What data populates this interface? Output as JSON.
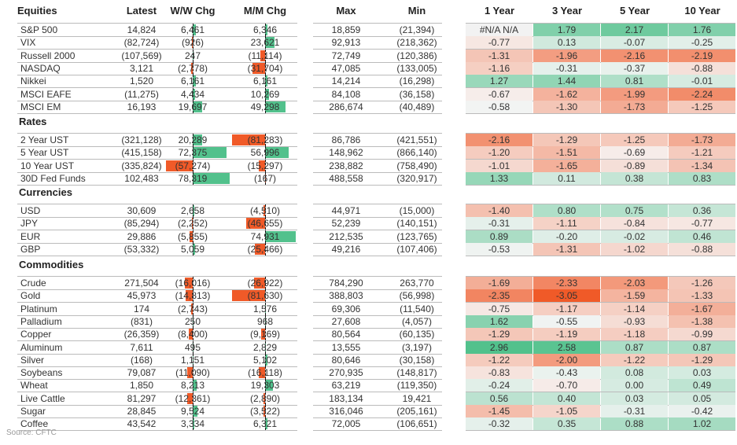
{
  "headers": {
    "name": "Equities",
    "latest": "Latest",
    "ww": "W/W Chg",
    "mm": "M/M Chg",
    "max": "Max",
    "min": "Min",
    "y1": "1 Year",
    "y3": "3 Year",
    "y5": "5 Year",
    "y10": "10 Year"
  },
  "colors": {
    "positive": "#52c18c",
    "negative": "#f05a28"
  },
  "sections": [
    {
      "title": "Equities",
      "rows": [
        {
          "name": "S&P 500",
          "latest": "14,824",
          "ww": "6,461",
          "mm": "6,346",
          "max": "18,859",
          "min": "(21,394)",
          "z": [
            "#N/A N/A",
            "1.79",
            "2.17",
            "1.76"
          ]
        },
        {
          "name": "VIX",
          "latest": "(82,724)",
          "ww": "(926)",
          "mm": "23,621",
          "max": "92,913",
          "min": "(218,362)",
          "z": [
            "-0.77",
            "0.13",
            "-0.07",
            "-0.25"
          ]
        },
        {
          "name": "Russell 2000",
          "latest": "(107,569)",
          "ww": "247",
          "mm": "(11,114)",
          "max": "72,749",
          "min": "(120,386)",
          "z": [
            "-1.31",
            "-1.96",
            "-2.16",
            "-2.19"
          ]
        },
        {
          "name": "NASDAQ",
          "latest": "3,121",
          "ww": "(2,778)",
          "mm": "(31,704)",
          "max": "47,085",
          "min": "(133,005)",
          "z": [
            "-1.16",
            "-0.31",
            "-0.37",
            "-0.88"
          ]
        },
        {
          "name": "Nikkei",
          "latest": "1,520",
          "ww": "6,161",
          "mm": "6,161",
          "max": "14,214",
          "min": "(16,298)",
          "z": [
            "1.27",
            "1.44",
            "0.81",
            "-0.01"
          ]
        },
        {
          "name": "MSCI EAFE",
          "latest": "(11,275)",
          "ww": "4,434",
          "mm": "10,269",
          "max": "84,108",
          "min": "(36,158)",
          "z": [
            "-0.67",
            "-1.62",
            "-1.99",
            "-2.24"
          ]
        },
        {
          "name": "MSCI EM",
          "latest": "16,193",
          "ww": "19,697",
          "mm": "49,298",
          "max": "286,674",
          "min": "(40,489)",
          "z": [
            "-0.58",
            "-1.30",
            "-1.73",
            "-1.25"
          ]
        }
      ]
    },
    {
      "title": "Rates",
      "rows": [
        {
          "name": "2 Year UST",
          "latest": "(321,128)",
          "ww": "20,289",
          "mm": "(81,283)",
          "max": "86,786",
          "min": "(421,551)",
          "z": [
            "-2.16",
            "-1.29",
            "-1.25",
            "-1.73"
          ]
        },
        {
          "name": "5 Year UST",
          "latest": "(415,158)",
          "ww": "72,375",
          "mm": "56,996",
          "max": "148,962",
          "min": "(866,140)",
          "z": [
            "-1.20",
            "-1.51",
            "-0.69",
            "-1.21"
          ]
        },
        {
          "name": "10 Year UST",
          "latest": "(335,824)",
          "ww": "(57,274)",
          "mm": "(15,297)",
          "max": "238,882",
          "min": "(758,490)",
          "z": [
            "-1.01",
            "-1.65",
            "-0.89",
            "-1.34"
          ]
        },
        {
          "name": "30D Fed Funds",
          "latest": "102,483",
          "ww": "78,319",
          "mm": "(167)",
          "max": "488,558",
          "min": "(320,917)",
          "z": [
            "1.33",
            "0.11",
            "0.38",
            "0.83"
          ]
        }
      ]
    },
    {
      "title": "Currencies",
      "rows": [
        {
          "name": "USD",
          "latest": "30,609",
          "ww": "2,658",
          "mm": "(4,510)",
          "max": "44,971",
          "min": "(15,000)",
          "z": [
            "-1.40",
            "0.80",
            "0.75",
            "0.36"
          ]
        },
        {
          "name": "JPY",
          "latest": "(85,294)",
          "ww": "(2,252)",
          "mm": "(46,655)",
          "max": "52,239",
          "min": "(140,151)",
          "z": [
            "-0.31",
            "-1.11",
            "-0.84",
            "-0.77"
          ]
        },
        {
          "name": "EUR",
          "latest": "29,886",
          "ww": "(5,855)",
          "mm": "74,931",
          "max": "212,535",
          "min": "(123,765)",
          "z": [
            "0.89",
            "-0.20",
            "-0.02",
            "0.46"
          ]
        },
        {
          "name": "GBP",
          "latest": "(53,332)",
          "ww": "5,059",
          "mm": "(25,466)",
          "max": "49,216",
          "min": "(107,406)",
          "z": [
            "-0.53",
            "-1.31",
            "-1.02",
            "-0.88"
          ]
        }
      ]
    },
    {
      "title": "Commodities",
      "rows": [
        {
          "name": "Crude",
          "latest": "271,504",
          "ww": "(16,016)",
          "mm": "(26,922)",
          "max": "784,290",
          "min": "263,770",
          "z": [
            "-1.69",
            "-2.33",
            "-2.03",
            "-1.26"
          ]
        },
        {
          "name": "Gold",
          "latest": "45,973",
          "ww": "(14,813)",
          "mm": "(81,630)",
          "max": "388,803",
          "min": "(56,998)",
          "z": [
            "-2.35",
            "-3.05",
            "-1.59",
            "-1.33"
          ]
        },
        {
          "name": "Platinum",
          "latest": "174",
          "ww": "(2,743)",
          "mm": "1,576",
          "max": "69,306",
          "min": "(11,540)",
          "z": [
            "-0.75",
            "-1.17",
            "-1.14",
            "-1.67"
          ]
        },
        {
          "name": "Palladium",
          "latest": "(831)",
          "ww": "250",
          "mm": "968",
          "max": "27,608",
          "min": "(4,057)",
          "z": [
            "1.62",
            "-0.55",
            "-0.93",
            "-1.38"
          ]
        },
        {
          "name": "Copper",
          "latest": "(26,359)",
          "ww": "(8,400)",
          "mm": "(9,169)",
          "max": "80,564",
          "min": "(60,135)",
          "z": [
            "-1.29",
            "-1.19",
            "-1.18",
            "-0.99"
          ]
        },
        {
          "name": "Aluminum",
          "latest": "7,611",
          "ww": "495",
          "mm": "2,829",
          "max": "13,555",
          "min": "(3,197)",
          "z": [
            "2.96",
            "2.58",
            "0.87",
            "0.87"
          ]
        },
        {
          "name": "Silver",
          "latest": "(168)",
          "ww": "1,151",
          "mm": "5,102",
          "max": "80,646",
          "min": "(30,158)",
          "z": [
            "-1.22",
            "-2.00",
            "-1.22",
            "-1.29"
          ]
        },
        {
          "name": "Soybeans",
          "latest": "79,087",
          "ww": "(11,090)",
          "mm": "(16,118)",
          "max": "270,935",
          "min": "(148,817)",
          "z": [
            "-0.83",
            "-0.43",
            "0.08",
            "0.03"
          ]
        },
        {
          "name": "Wheat",
          "latest": "1,850",
          "ww": "8,213",
          "mm": "19,303",
          "max": "63,219",
          "min": "(119,350)",
          "z": [
            "-0.24",
            "-0.70",
            "0.00",
            "0.49"
          ]
        },
        {
          "name": "Live Cattle",
          "latest": "81,297",
          "ww": "(12,361)",
          "mm": "(2,890)",
          "max": "183,134",
          "min": "19,421",
          "z": [
            "0.56",
            "0.40",
            "0.03",
            "0.05"
          ]
        },
        {
          "name": "Sugar",
          "latest": "28,845",
          "ww": "9,524",
          "mm": "(3,522)",
          "max": "316,046",
          "min": "(205,161)",
          "z": [
            "-1.45",
            "-1.05",
            "-0.31",
            "-0.42"
          ]
        },
        {
          "name": "Coffee",
          "latest": "43,542",
          "ww": "3,334",
          "mm": "6,321",
          "max": "72,005",
          "min": "(106,651)",
          "z": [
            "-0.32",
            "0.35",
            "0.88",
            "1.02"
          ]
        }
      ]
    }
  ],
  "source": "Source: CFTC"
}
